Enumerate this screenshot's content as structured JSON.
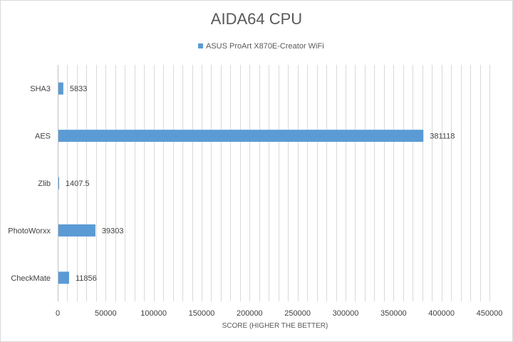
{
  "chart_data": {
    "type": "bar",
    "orientation": "horizontal",
    "title": "AIDA64 CPU",
    "xlabel": "SCORE (HIGHER THE BETTER)",
    "ylabel": "",
    "categories": [
      "SHA3",
      "AES",
      "Zlib",
      "PhotoWorxx",
      "CheckMate"
    ],
    "series": [
      {
        "name": "ASUS ProArt X870E-Creator WiFi",
        "color": "#5b9bd5",
        "values": [
          5833,
          381118,
          1407.5,
          39303,
          11856
        ]
      }
    ],
    "xlim": [
      0,
      450000
    ],
    "major_ticks": [
      0,
      50000,
      100000,
      150000,
      200000,
      250000,
      300000,
      350000,
      400000,
      450000
    ],
    "minor_gridline_step": 10000,
    "grid": true,
    "legend": "top"
  }
}
